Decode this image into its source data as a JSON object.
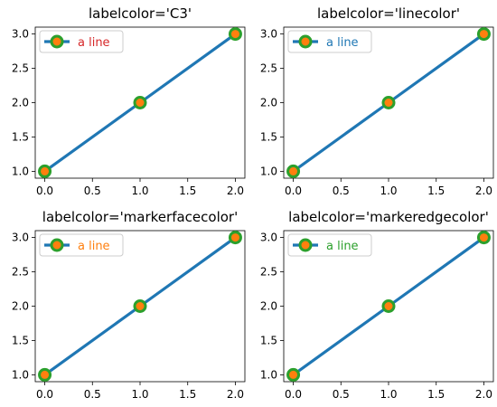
{
  "figure": {
    "background": "#ffffff"
  },
  "style": {
    "line_color": "#1f77b4",
    "marker_face_color": "#ff7f0e",
    "marker_edge_color": "#2ca02c"
  },
  "chart_data": [
    {
      "type": "line",
      "title": "labelcolor='C3'",
      "x": [
        0,
        1,
        2
      ],
      "series": [
        {
          "name": "a line",
          "values": [
            1,
            2,
            3
          ]
        }
      ],
      "xlim": [
        -0.1,
        2.1
      ],
      "ylim": [
        0.9,
        3.1
      ],
      "xticks": [
        "0.0",
        "0.5",
        "1.0",
        "1.5",
        "2.0"
      ],
      "yticks": [
        "1.0",
        "1.5",
        "2.0",
        "2.5",
        "3.0"
      ],
      "grid": false,
      "legend": {
        "placement": "upper-left",
        "label_color": "#d62728"
      }
    },
    {
      "type": "line",
      "title": "labelcolor='linecolor'",
      "x": [
        0,
        1,
        2
      ],
      "series": [
        {
          "name": "a line",
          "values": [
            1,
            2,
            3
          ]
        }
      ],
      "xlim": [
        -0.1,
        2.1
      ],
      "ylim": [
        0.9,
        3.1
      ],
      "xticks": [
        "0.0",
        "0.5",
        "1.0",
        "1.5",
        "2.0"
      ],
      "yticks": [
        "1.0",
        "1.5",
        "2.0",
        "2.5",
        "3.0"
      ],
      "grid": false,
      "legend": {
        "placement": "upper-left",
        "label_color": "#1f77b4"
      }
    },
    {
      "type": "line",
      "title": "labelcolor='markerfacecolor'",
      "x": [
        0,
        1,
        2
      ],
      "series": [
        {
          "name": "a line",
          "values": [
            1,
            2,
            3
          ]
        }
      ],
      "xlim": [
        -0.1,
        2.1
      ],
      "ylim": [
        0.9,
        3.1
      ],
      "xticks": [
        "0.0",
        "0.5",
        "1.0",
        "1.5",
        "2.0"
      ],
      "yticks": [
        "1.0",
        "1.5",
        "2.0",
        "2.5",
        "3.0"
      ],
      "grid": false,
      "legend": {
        "placement": "upper-left",
        "label_color": "#ff7f0e"
      }
    },
    {
      "type": "line",
      "title": "labelcolor='markeredgecolor'",
      "x": [
        0,
        1,
        2
      ],
      "series": [
        {
          "name": "a line",
          "values": [
            1,
            2,
            3
          ]
        }
      ],
      "xlim": [
        -0.1,
        2.1
      ],
      "ylim": [
        0.9,
        3.1
      ],
      "xticks": [
        "0.0",
        "0.5",
        "1.0",
        "1.5",
        "2.0"
      ],
      "yticks": [
        "1.0",
        "1.5",
        "2.0",
        "2.5",
        "3.0"
      ],
      "grid": false,
      "legend": {
        "placement": "upper-left",
        "label_color": "#2ca02c"
      }
    }
  ]
}
